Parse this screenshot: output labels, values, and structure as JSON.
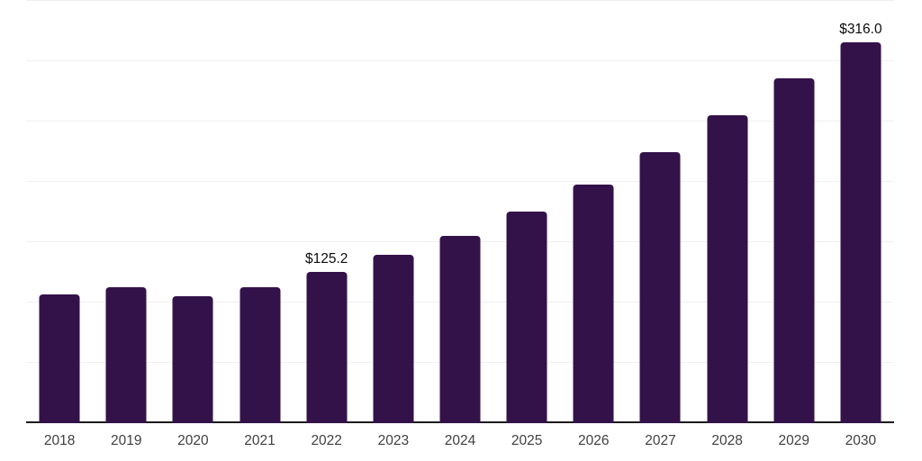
{
  "chart_data": {
    "type": "bar",
    "title": "",
    "xlabel": "",
    "ylabel": "",
    "categories": [
      "2018",
      "2019",
      "2020",
      "2021",
      "2022",
      "2023",
      "2024",
      "2025",
      "2026",
      "2027",
      "2028",
      "2029",
      "2030"
    ],
    "values": [
      106.4,
      112.6,
      105.0,
      112.4,
      125.2,
      139.3,
      155.4,
      175.3,
      197.7,
      224.3,
      255.3,
      286.0,
      316.0
    ],
    "annotations": [
      {
        "index": 4,
        "text": "$125.2"
      },
      {
        "index": 12,
        "text": "$316.0"
      }
    ],
    "ylim": [
      0,
      350
    ],
    "gridline_interval": 50,
    "grid": true,
    "legend_position": "none",
    "colors": {
      "bar": "#33124a",
      "gridline": "#f0f0f1",
      "axis": "#1c1c1c",
      "tick_label": "#404040",
      "value_label": "#0c0c0c",
      "background": "#ffffff"
    }
  }
}
